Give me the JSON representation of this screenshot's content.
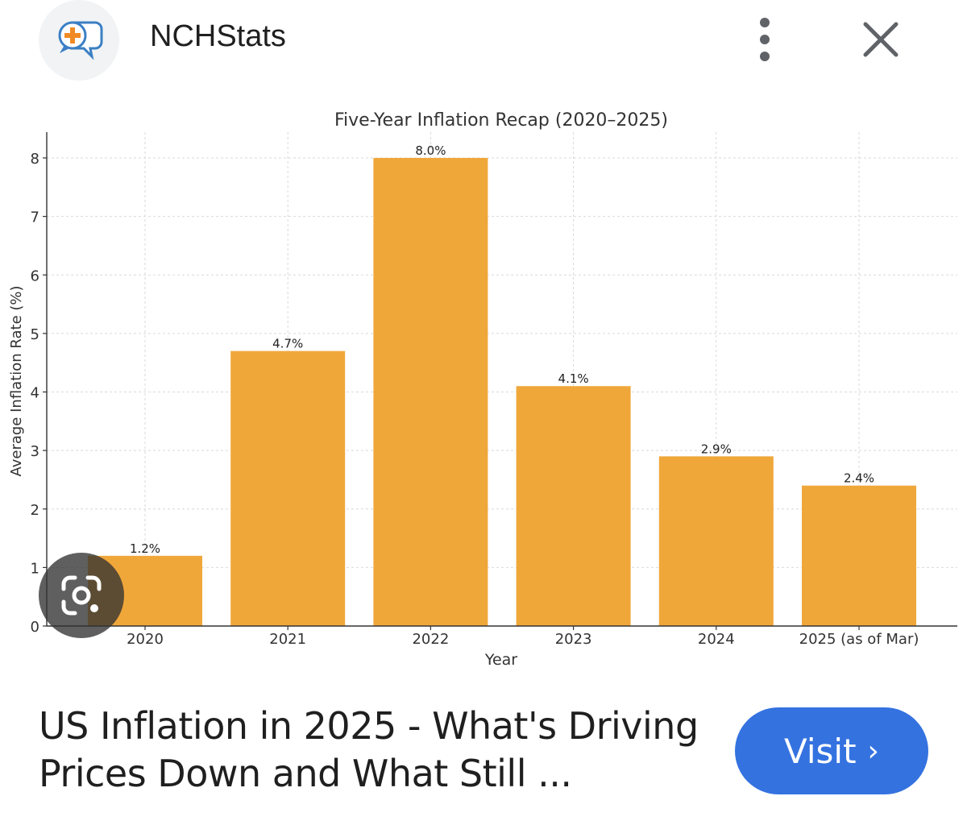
{
  "header": {
    "site_name": "NCHStats"
  },
  "chart_data": {
    "type": "bar",
    "title": "Five-Year Inflation Recap (2020–2025)",
    "xlabel": "Year",
    "ylabel": "Average Inflation Rate (%)",
    "categories": [
      "2020",
      "2021",
      "2022",
      "2023",
      "2024",
      "2025 (as of Mar)"
    ],
    "values": [
      1.2,
      4.7,
      8.0,
      4.1,
      2.9,
      2.4
    ],
    "data_labels": [
      "1.2%",
      "4.7%",
      "8.0%",
      "4.1%",
      "2.9%",
      "2.4%"
    ],
    "yticks": [
      "0",
      "1",
      "2",
      "3",
      "4",
      "5",
      "6",
      "7",
      "8"
    ],
    "ylim": [
      0,
      8.4
    ],
    "grid": true,
    "bar_color": "#f0a73a"
  },
  "result": {
    "headline_line1": "US Inflation in 2025 - What's Driving",
    "headline_line2": "Prices Down and What Still ...",
    "visit_label": "Visit",
    "visit_chevron": "›"
  },
  "colors": {
    "accent": "#3472e0",
    "icon_gray": "#5f6368"
  }
}
